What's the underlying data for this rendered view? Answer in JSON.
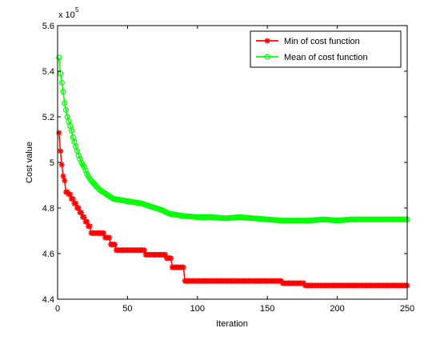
{
  "chart_data": {
    "type": "line",
    "title": "",
    "xlabel": "Iteration",
    "ylabel": "Cost value",
    "y_multiplier_label": "x 10",
    "y_multiplier_exponent": "5",
    "xlim": [
      0,
      250
    ],
    "ylim": [
      4.4,
      5.6
    ],
    "x_ticks": [
      "0",
      "50",
      "100",
      "150",
      "200",
      "250"
    ],
    "y_ticks": [
      "4.4",
      "4.6",
      "4.8",
      "5",
      "5.2",
      "5.4",
      "5.6"
    ],
    "x_tick_values": [
      0,
      50,
      100,
      150,
      200,
      250
    ],
    "y_tick_values": [
      4.4,
      4.6,
      4.8,
      5.0,
      5.2,
      5.4,
      5.6
    ],
    "grid": false,
    "legend_position": "top-right",
    "series": [
      {
        "name": "Min of cost function",
        "color": "#ff0000",
        "marker": "star",
        "step": true,
        "points": [
          [
            1,
            5.13
          ],
          [
            2,
            5.05
          ],
          [
            3,
            4.99
          ],
          [
            4,
            4.94
          ],
          [
            5,
            4.92
          ],
          [
            6,
            4.87
          ],
          [
            8,
            4.86
          ],
          [
            10,
            4.84
          ],
          [
            12,
            4.82
          ],
          [
            14,
            4.8
          ],
          [
            16,
            4.78
          ],
          [
            18,
            4.76
          ],
          [
            20,
            4.74
          ],
          [
            22,
            4.72
          ],
          [
            24,
            4.69
          ],
          [
            34,
            4.67
          ],
          [
            38,
            4.64
          ],
          [
            42,
            4.615
          ],
          [
            60,
            4.615
          ],
          [
            62,
            4.615
          ],
          [
            63,
            4.595
          ],
          [
            76,
            4.595
          ],
          [
            78,
            4.58
          ],
          [
            81,
            4.58
          ],
          [
            82,
            4.54
          ],
          [
            90,
            4.54
          ],
          [
            91,
            4.48
          ],
          [
            160,
            4.48
          ],
          [
            161,
            4.47
          ],
          [
            176,
            4.47
          ],
          [
            177,
            4.46
          ],
          [
            250,
            4.46
          ]
        ]
      },
      {
        "name": "Mean of cost function",
        "color": "#00ff00",
        "marker": "circle",
        "step": false,
        "points": [
          [
            1,
            5.46
          ],
          [
            2,
            5.39
          ],
          [
            3,
            5.35
          ],
          [
            4,
            5.31
          ],
          [
            5,
            5.26
          ],
          [
            6,
            5.23
          ],
          [
            7,
            5.2
          ],
          [
            8,
            5.18
          ],
          [
            9,
            5.16
          ],
          [
            10,
            5.14
          ],
          [
            11,
            5.11
          ],
          [
            12,
            5.09
          ],
          [
            13,
            5.07
          ],
          [
            14,
            5.05
          ],
          [
            15,
            5.03
          ],
          [
            17,
            5.0
          ],
          [
            19,
            4.98
          ],
          [
            21,
            4.95
          ],
          [
            24,
            4.92
          ],
          [
            27,
            4.9
          ],
          [
            30,
            4.88
          ],
          [
            35,
            4.86
          ],
          [
            40,
            4.84
          ],
          [
            45,
            4.835
          ],
          [
            50,
            4.83
          ],
          [
            55,
            4.825
          ],
          [
            60,
            4.82
          ],
          [
            65,
            4.81
          ],
          [
            70,
            4.8
          ],
          [
            75,
            4.79
          ],
          [
            80,
            4.775
          ],
          [
            85,
            4.77
          ],
          [
            90,
            4.765
          ],
          [
            100,
            4.76
          ],
          [
            110,
            4.76
          ],
          [
            120,
            4.755
          ],
          [
            130,
            4.76
          ],
          [
            140,
            4.755
          ],
          [
            150,
            4.75
          ],
          [
            160,
            4.745
          ],
          [
            170,
            4.745
          ],
          [
            180,
            4.745
          ],
          [
            190,
            4.75
          ],
          [
            200,
            4.745
          ],
          [
            210,
            4.75
          ],
          [
            220,
            4.75
          ],
          [
            230,
            4.75
          ],
          [
            240,
            4.75
          ],
          [
            250,
            4.75
          ]
        ]
      }
    ]
  }
}
